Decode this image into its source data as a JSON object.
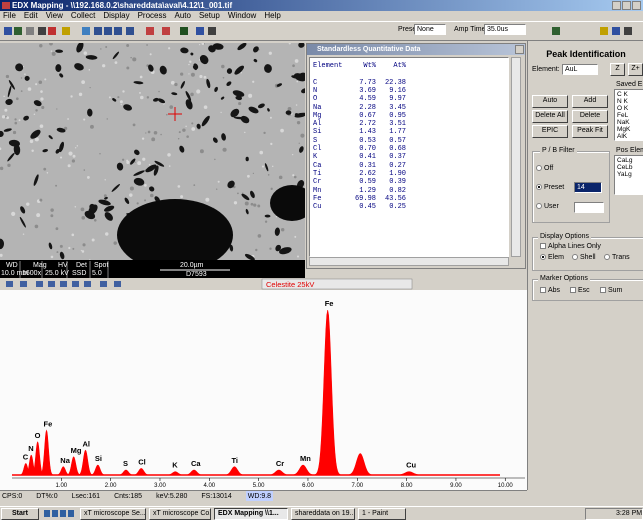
{
  "window_title": "EDX Mapping - \\\\192.168.0.2\\shareddata\\aval\\4.12\\1_001.tif",
  "menu": [
    "File",
    "Edit",
    "View",
    "Collect",
    "Display",
    "Process",
    "Auto",
    "Setup",
    "Window",
    "Help"
  ],
  "toolbar": {
    "preset_label": "Preset",
    "preset_value": "None",
    "amp_time_label": "Amp Time",
    "amp_time_value": "35.0us"
  },
  "image_info": {
    "headers": [
      "WD",
      "Mag",
      "HV",
      "Det",
      "Spot"
    ],
    "values": [
      "10.0 mm",
      "1600x",
      "25.0 kV",
      "SSD",
      "5.0"
    ],
    "scale_bar": "20.0µm",
    "id": "D7593"
  },
  "quant": {
    "title": "Standardless Quantitative Data",
    "columns": [
      "Element",
      "Wt%",
      "At%"
    ],
    "rows": [
      [
        "C",
        "7.73",
        "22.38"
      ],
      [
        "N",
        "3.69",
        "9.16"
      ],
      [
        "O",
        "4.59",
        "9.97"
      ],
      [
        "Na",
        "2.28",
        "3.45"
      ],
      [
        "Mg",
        "0.67",
        "0.95"
      ],
      [
        "Al",
        "2.72",
        "3.51"
      ],
      [
        "Si",
        "1.43",
        "1.77"
      ],
      [
        "S",
        "0.53",
        "0.57"
      ],
      [
        "Cl",
        "0.70",
        "0.68"
      ],
      [
        "K",
        "0.41",
        "0.37"
      ],
      [
        "Ca",
        "0.31",
        "0.27"
      ],
      [
        "Ti",
        "2.62",
        "1.90"
      ],
      [
        "Cr",
        "0.59",
        "0.39"
      ],
      [
        "Mn",
        "1.29",
        "0.82"
      ],
      [
        "Fe",
        "69.98",
        "43.56"
      ],
      [
        "Cu",
        "0.45",
        "0.25"
      ]
    ]
  },
  "spectrum": {
    "title": "Celestite 25kV",
    "xlim": [
      0,
      10.4
    ],
    "xticks": [
      {
        "value": 1,
        "label": "1.00"
      },
      {
        "value": 2,
        "label": "2.00"
      },
      {
        "value": 3,
        "label": "3.00"
      },
      {
        "value": 4,
        "label": "4.00"
      },
      {
        "value": 5,
        "label": "5.00"
      },
      {
        "value": 6,
        "label": "6.00"
      },
      {
        "value": 7,
        "label": "7.00"
      },
      {
        "value": 8,
        "label": "8.00"
      },
      {
        "value": 9,
        "label": "9.00"
      },
      {
        "value": 10,
        "label": "10.00"
      }
    ],
    "ylim": [
      0,
      100
    ],
    "color": "#ff0000",
    "peaks": [
      {
        "label": "C",
        "kev": 0.28,
        "height": 7
      },
      {
        "label": "N",
        "kev": 0.39,
        "height": 12
      },
      {
        "label": "O",
        "kev": 0.52,
        "height": 20
      },
      {
        "label": "Fe",
        "kev": 0.7,
        "height": 27
      },
      {
        "label": "Na",
        "kev": 1.04,
        "height": 5
      },
      {
        "label": "Mg",
        "kev": 1.25,
        "height": 11
      },
      {
        "label": "Al",
        "kev": 1.49,
        "height": 15
      },
      {
        "label": "Si",
        "kev": 1.74,
        "height": 6
      },
      {
        "label": "S",
        "kev": 2.31,
        "height": 3
      },
      {
        "label": "Cl",
        "kev": 2.62,
        "height": 4
      },
      {
        "label": "K",
        "kev": 3.31,
        "height": 2
      },
      {
        "label": "Ca",
        "kev": 3.69,
        "height": 3
      },
      {
        "label": "Ti",
        "kev": 4.51,
        "height": 5
      },
      {
        "label": "Cr",
        "kev": 5.41,
        "height": 3
      },
      {
        "label": "Mn",
        "kev": 5.9,
        "height": 6
      },
      {
        "label": "Fe",
        "kev": 6.4,
        "height": 100
      },
      {
        "label": null,
        "kev": 7.06,
        "height": 13
      },
      {
        "label": "Cu",
        "kev": 8.05,
        "height": 2
      }
    ]
  },
  "status": [
    "CPS:0",
    "DT%:0",
    "Lsec:161",
    "Cnts:185",
    "keV:5.280",
    "FS:13014",
    "WD:9.8"
  ],
  "peak_id": {
    "title": "Peak Identification",
    "element_label": "Element:",
    "element_value": "AuL",
    "z_buttons": [
      "Z",
      "Z+"
    ],
    "saved_label": "Saved Elem",
    "saved": [
      "C K",
      "N K",
      "O K",
      "FeL",
      "NaK",
      "MgK",
      "AlK"
    ],
    "buttons": [
      "Auto",
      "Add",
      "Delete All",
      "Delete",
      "EPIC",
      "Peak Fit"
    ],
    "pb_filter": {
      "label": "P / B Filter",
      "options": [
        "Off",
        "Preset",
        "User"
      ],
      "preset_value": "14"
    },
    "pos_label": "Pos Elem",
    "pos": [
      "CaLg",
      "CeLb",
      "YaLg"
    ],
    "display": {
      "label": "Display Options",
      "alpha": "Alpha Lines Only",
      "modes": [
        "Elem",
        "Shell",
        "Trans"
      ]
    },
    "marker": {
      "label": "Marker Options",
      "options": [
        "Abs",
        "Esc",
        "Sum"
      ]
    }
  },
  "taskbar": {
    "start": "Start",
    "tasks": [
      "xT microscope Se...",
      "xT microscope Co...",
      "EDX Mapping \\\\1...",
      "shareddata on 19...",
      "1 - Paint"
    ],
    "clock": "3:28 PM"
  }
}
